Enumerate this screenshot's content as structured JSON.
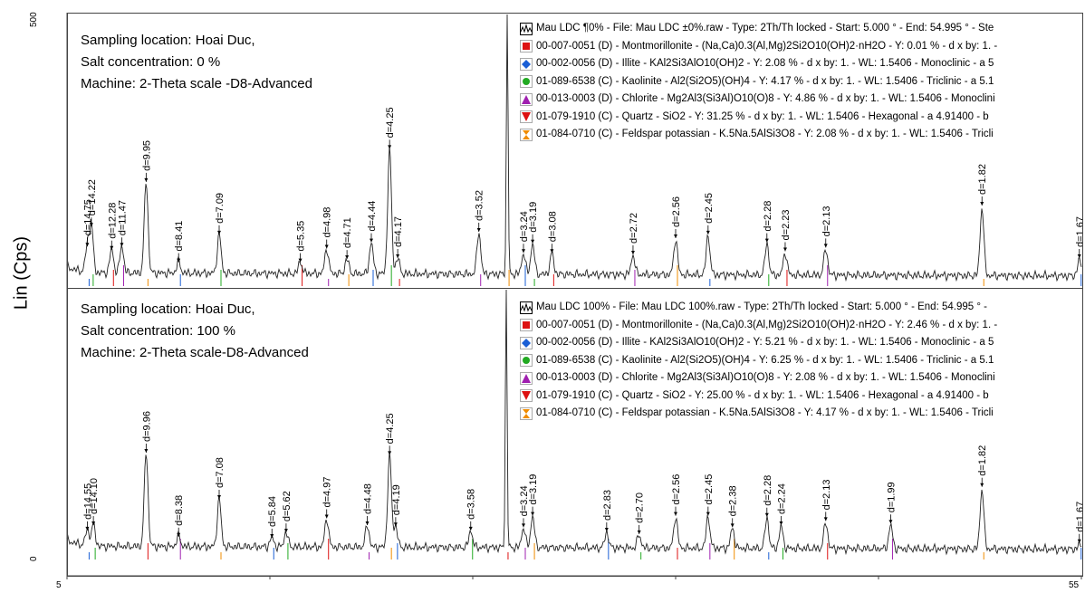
{
  "y_axis_label": "Lin (Cps)",
  "y_ticks": {
    "top": "500",
    "bottom": "0"
  },
  "x_ticks": {
    "left": "5",
    "right": "55"
  },
  "chart_data": [
    {
      "type": "line",
      "xlim": [
        5,
        55
      ],
      "info": [
        "Sampling location: Hoai Duc,",
        "Salt concentration: 0 %",
        "Machine: 2-Theta scale -D8-Advanced"
      ],
      "legend": [
        {
          "marker": "trace",
          "color": "#000000",
          "text": "Mau LDC ¶0% - File: Mau LDC ±0%.raw - Type: 2Th/Th locked - Start: 5.000 ° - End: 54.995 ° - Ste"
        },
        {
          "marker": "square",
          "color": "#dd1111",
          "text": "00-007-0051 (D) - Montmorillonite - (Na,Ca)0.3(Al,Mg)2Si2O10(OH)2·nH2O - Y: 0.01 % - d x by: 1. -"
        },
        {
          "marker": "diamond",
          "color": "#1a5fd6",
          "text": "00-002-0056 (D) - Illite - KAl2Si3AlO10(OH)2 - Y: 2.08 % - d x by: 1. - WL: 1.5406 - Monoclinic - a 5"
        },
        {
          "marker": "circle",
          "color": "#22aa22",
          "text": "01-089-6538 (C) - Kaolinite - Al2(Si2O5)(OH)4 - Y: 4.17 % - d x by: 1. - WL: 1.5406 - Triclinic - a 5.1"
        },
        {
          "marker": "triangle-up",
          "color": "#a020b0",
          "text": "00-013-0003 (D) - Chlorite - Mg2Al3(Si3Al)O10(O)8 - Y: 4.86 % - d x by: 1. - WL: 1.5406 - Monoclini"
        },
        {
          "marker": "triangle-down",
          "color": "#dd1111",
          "text": "01-079-1910 (C) - Quartz - SiO2 - Y: 31.25 % - d x by: 1. - WL: 1.5406 - Hexagonal - a 4.91400 - b"
        },
        {
          "marker": "hourglass",
          "color": "#f08c00",
          "text": "01-084-0710 (C) - Feldspar potassian - K.5Na.5AlSi3O8 - Y: 2.08 % - d x by: 1. - WL: 1.5406 - Tricli"
        }
      ],
      "peaks": [
        {
          "x": 6.0,
          "y": 72,
          "label": "d=14.75"
        },
        {
          "x": 6.2,
          "y": 110,
          "label": "d=14.22"
        },
        {
          "x": 7.2,
          "y": 66,
          "label": "d=12.28"
        },
        {
          "x": 7.7,
          "y": 72,
          "label": "d=11.47"
        },
        {
          "x": 8.9,
          "y": 195,
          "label": "d=9.95"
        },
        {
          "x": 10.5,
          "y": 42,
          "label": "d=8.41"
        },
        {
          "x": 12.5,
          "y": 95,
          "label": "d=7.09"
        },
        {
          "x": 16.5,
          "y": 42,
          "label": "d=5.35"
        },
        {
          "x": 17.8,
          "y": 68,
          "label": "d=4.98"
        },
        {
          "x": 18.8,
          "y": 48,
          "label": "d=4.71"
        },
        {
          "x": 20.0,
          "y": 80,
          "label": "d=4.44"
        },
        {
          "x": 20.9,
          "y": 258,
          "label": "d=4.25"
        },
        {
          "x": 21.3,
          "y": 50,
          "label": "d=4.17"
        },
        {
          "x": 25.3,
          "y": 100,
          "label": "d=3.52"
        },
        {
          "x": 26.7,
          "y": 520,
          "label": ""
        },
        {
          "x": 27.5,
          "y": 60,
          "label": "d=3.24"
        },
        {
          "x": 27.95,
          "y": 78,
          "label": "d=3.19"
        },
        {
          "x": 28.9,
          "y": 60,
          "label": "d=3.08"
        },
        {
          "x": 32.9,
          "y": 57,
          "label": "d=2.72"
        },
        {
          "x": 35.0,
          "y": 88,
          "label": "d=2.56"
        },
        {
          "x": 36.6,
          "y": 95,
          "label": "d=2.45"
        },
        {
          "x": 39.5,
          "y": 80,
          "label": "d=2.28"
        },
        {
          "x": 40.4,
          "y": 63,
          "label": "d=2.23"
        },
        {
          "x": 42.4,
          "y": 70,
          "label": "d=2.13"
        },
        {
          "x": 50.1,
          "y": 150,
          "label": "d=1.82"
        },
        {
          "x": 54.9,
          "y": 50,
          "label": "d=1.67"
        }
      ]
    },
    {
      "type": "line",
      "xlim": [
        5,
        55
      ],
      "info": [
        "Sampling location: Hoai Duc,",
        "Salt concentration: 100 %",
        "Machine: 2-Theta scale-D8-Advanced"
      ],
      "legend": [
        {
          "marker": "trace",
          "color": "#000000",
          "text": "Mau LDC 100% - File: Mau LDC 100%.raw - Type: 2Th/Th locked - Start: 5.000 ° - End: 54.995 ° -"
        },
        {
          "marker": "square",
          "color": "#dd1111",
          "text": "00-007-0051 (D) - Montmorillonite - (Na,Ca)0.3(Al,Mg)2Si2O10(OH)2·nH2O - Y: 2.46 % - d x by: 1. -"
        },
        {
          "marker": "diamond",
          "color": "#1a5fd6",
          "text": "00-002-0056 (D) - Illite - KAl2Si3AlO10(OH)2 - Y: 5.21 % - d x by: 1. - WL: 1.5406 - Monoclinic - a 5"
        },
        {
          "marker": "circle",
          "color": "#22aa22",
          "text": "01-089-6538 (C) - Kaolinite - Al2(Si2O5)(OH)4 - Y: 6.25 % - d x by: 1. - WL: 1.5406 - Triclinic - a 5.1"
        },
        {
          "marker": "triangle-up",
          "color": "#a020b0",
          "text": "00-013-0003 (D) - Chlorite - Mg2Al3(Si3Al)O10(O)8 - Y: 2.08 % - d x by: 1. - WL: 1.5406 - Monoclini"
        },
        {
          "marker": "triangle-down",
          "color": "#dd1111",
          "text": "01-079-1910 (C) - Quartz - SiO2 - Y: 25.00 % - d x by: 1. - WL: 1.5406 - Hexagonal - a 4.91400 - b"
        },
        {
          "marker": "hourglass",
          "color": "#f08c00",
          "text": "01-084-0710 (C) - Feldspar potassian - K.5Na.5AlSi3O8 - Y: 4.17 % - d x by: 1. - WL: 1.5406 - Tricli"
        }
      ],
      "peaks": [
        {
          "x": 6.0,
          "y": 52,
          "label": "d=14.55"
        },
        {
          "x": 6.3,
          "y": 62,
          "label": "d=14.10"
        },
        {
          "x": 8.9,
          "y": 200,
          "label": "d=9.96"
        },
        {
          "x": 10.5,
          "y": 40,
          "label": "d=8.38"
        },
        {
          "x": 12.5,
          "y": 112,
          "label": "d=7.08"
        },
        {
          "x": 15.1,
          "y": 38,
          "label": "d=5.84"
        },
        {
          "x": 15.8,
          "y": 48,
          "label": "d=5.62"
        },
        {
          "x": 17.8,
          "y": 75,
          "label": "d=4.97"
        },
        {
          "x": 19.8,
          "y": 62,
          "label": "d=4.48"
        },
        {
          "x": 20.9,
          "y": 196,
          "label": "d=4.25"
        },
        {
          "x": 21.2,
          "y": 60,
          "label": "d=4.19"
        },
        {
          "x": 24.9,
          "y": 52,
          "label": "d=3.58"
        },
        {
          "x": 26.65,
          "y": 520,
          "label": ""
        },
        {
          "x": 27.5,
          "y": 58,
          "label": "d=3.24"
        },
        {
          "x": 27.95,
          "y": 80,
          "label": "d=3.19"
        },
        {
          "x": 31.6,
          "y": 50,
          "label": "d=2.83"
        },
        {
          "x": 33.2,
          "y": 45,
          "label": "d=2.70"
        },
        {
          "x": 35.0,
          "y": 80,
          "label": "d=2.56"
        },
        {
          "x": 36.6,
          "y": 80,
          "label": "d=2.45"
        },
        {
          "x": 37.8,
          "y": 58,
          "label": "d=2.38"
        },
        {
          "x": 39.5,
          "y": 78,
          "label": "d=2.28"
        },
        {
          "x": 40.2,
          "y": 62,
          "label": "d=2.24"
        },
        {
          "x": 42.4,
          "y": 70,
          "label": "d=2.13"
        },
        {
          "x": 45.6,
          "y": 65,
          "label": "d=1.99"
        },
        {
          "x": 50.1,
          "y": 135,
          "label": "d=1.82"
        },
        {
          "x": 54.9,
          "y": 28,
          "label": "d=1.67"
        }
      ]
    }
  ]
}
